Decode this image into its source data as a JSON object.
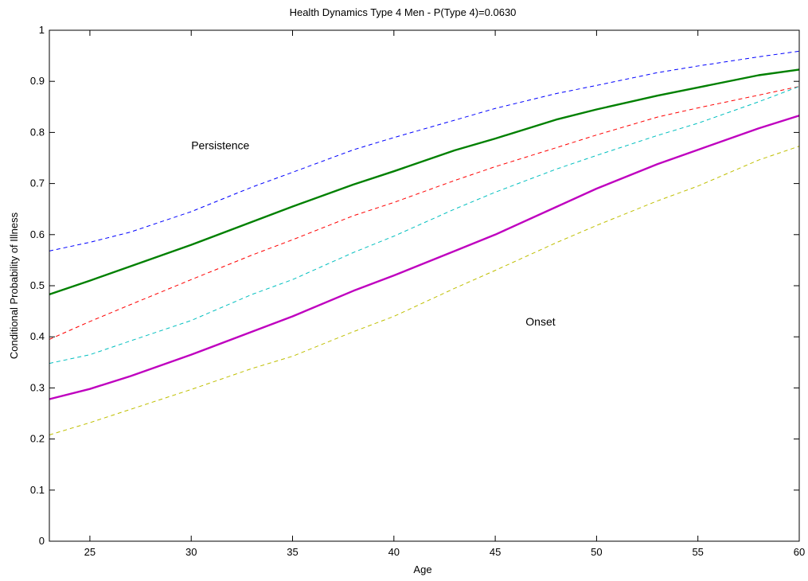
{
  "chart_data": {
    "type": "line",
    "title": "Health Dynamics Type 4 Men - P(Type 4)=0.0630",
    "xlabel": "Age",
    "ylabel": "Conditional Probability of Illness",
    "xlim": [
      23,
      60
    ],
    "ylim": [
      0,
      1
    ],
    "grid": false,
    "legend": "none",
    "xticks": [
      25,
      30,
      35,
      40,
      45,
      50,
      55,
      60
    ],
    "yticks": [
      0,
      0.1,
      0.2,
      0.3,
      0.4,
      0.5,
      0.6,
      0.7,
      0.8,
      0.9,
      1
    ],
    "xtick_labels": [
      "25",
      "30",
      "35",
      "40",
      "45",
      "50",
      "55",
      "60"
    ],
    "ytick_labels": [
      "0",
      "0.1",
      "0.2",
      "0.3",
      "0.4",
      "0.5",
      "0.6",
      "0.7",
      "0.8",
      "0.9",
      "1"
    ],
    "annotations": [
      {
        "text": "Persistence",
        "x": 30,
        "y": 0.775
      },
      {
        "text": "Onset",
        "x": 46.5,
        "y": 0.43
      }
    ],
    "x": [
      23,
      25,
      27,
      30,
      33,
      35,
      38,
      40,
      43,
      45,
      48,
      50,
      53,
      55,
      58,
      60
    ],
    "series": [
      {
        "color": "#0000ff",
        "style": "dashed",
        "width": 1,
        "values": [
          0.568,
          0.585,
          0.605,
          0.645,
          0.693,
          0.722,
          0.766,
          0.79,
          0.824,
          0.847,
          0.876,
          0.892,
          0.917,
          0.93,
          0.948,
          0.959
        ]
      },
      {
        "color": "#008000",
        "style": "solid",
        "width": 2.4,
        "values": [
          0.483,
          0.51,
          0.538,
          0.58,
          0.625,
          0.655,
          0.698,
          0.724,
          0.765,
          0.788,
          0.825,
          0.845,
          0.872,
          0.888,
          0.912,
          0.923
        ]
      },
      {
        "color": "#ff0000",
        "style": "dashed",
        "width": 1,
        "values": [
          0.395,
          0.43,
          0.463,
          0.512,
          0.56,
          0.59,
          0.637,
          0.663,
          0.706,
          0.733,
          0.77,
          0.795,
          0.83,
          0.848,
          0.873,
          0.89
        ]
      },
      {
        "color": "#00bfbf",
        "style": "dashed",
        "width": 1,
        "values": [
          0.348,
          0.365,
          0.392,
          0.432,
          0.483,
          0.512,
          0.565,
          0.597,
          0.65,
          0.683,
          0.728,
          0.755,
          0.794,
          0.818,
          0.86,
          0.89
        ]
      },
      {
        "color": "#bf00bf",
        "style": "solid",
        "width": 2.4,
        "values": [
          0.278,
          0.298,
          0.323,
          0.365,
          0.41,
          0.44,
          0.49,
          0.52,
          0.568,
          0.6,
          0.654,
          0.69,
          0.738,
          0.766,
          0.808,
          0.833
        ]
      },
      {
        "color": "#bfbf00",
        "style": "dashed",
        "width": 1,
        "values": [
          0.208,
          0.232,
          0.258,
          0.297,
          0.338,
          0.362,
          0.41,
          0.44,
          0.495,
          0.53,
          0.584,
          0.618,
          0.666,
          0.695,
          0.746,
          0.773
        ]
      }
    ]
  }
}
